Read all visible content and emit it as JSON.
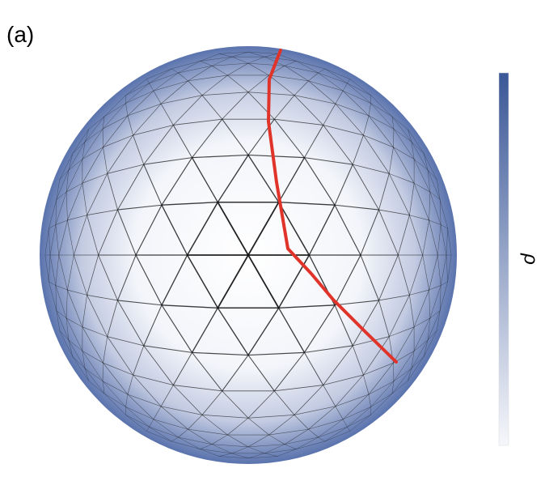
{
  "panel_label": "(a)",
  "colorbar": {
    "label": "ρ"
  }
}
